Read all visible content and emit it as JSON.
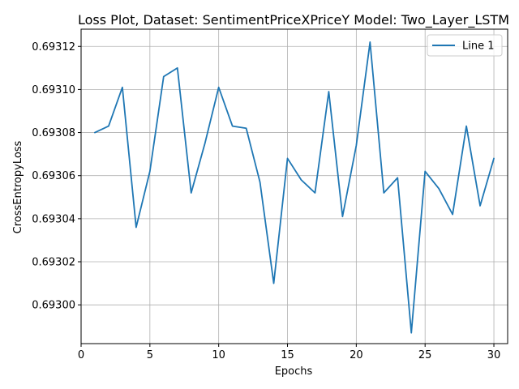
{
  "chart_data": {
    "type": "line",
    "title": "Loss Plot, Dataset: SentimentPriceXPriceY Model: Two_Layer_LSTM",
    "xlabel": "Epochs",
    "ylabel": "CrossEntropyLoss",
    "xlim": [
      0,
      31
    ],
    "ylim": [
      0.692982,
      0.693128
    ],
    "x_ticks": [
      0,
      5,
      10,
      15,
      20,
      25,
      30
    ],
    "x_tick_labels": [
      "0",
      "5",
      "10",
      "15",
      "20",
      "25",
      "30"
    ],
    "y_ticks": [
      0.693,
      0.69302,
      0.69304,
      0.69306,
      0.69308,
      0.6931,
      0.69312
    ],
    "y_tick_labels": [
      "0.69300",
      "0.69302",
      "0.69304",
      "0.69306",
      "0.69308",
      "0.69310",
      "0.69312"
    ],
    "grid": true,
    "legend_position": "top-right",
    "series": [
      {
        "name": "Line 1",
        "color": "#1f77b4",
        "x": [
          1,
          2,
          3,
          4,
          5,
          6,
          7,
          8,
          9,
          10,
          11,
          12,
          13,
          14,
          15,
          16,
          17,
          18,
          19,
          20,
          21,
          22,
          23,
          24,
          25,
          26,
          27,
          28,
          29,
          30
        ],
        "y": [
          0.69308,
          0.693083,
          0.693101,
          0.693036,
          0.693062,
          0.693106,
          0.69311,
          0.693052,
          0.693075,
          0.693101,
          0.693083,
          0.693082,
          0.693057,
          0.69301,
          0.693068,
          0.693058,
          0.693052,
          0.693099,
          0.693041,
          0.693074,
          0.693122,
          0.693052,
          0.693059,
          0.692987,
          0.693062,
          0.693054,
          0.693042,
          0.693083,
          0.693046,
          0.693068
        ]
      }
    ]
  }
}
